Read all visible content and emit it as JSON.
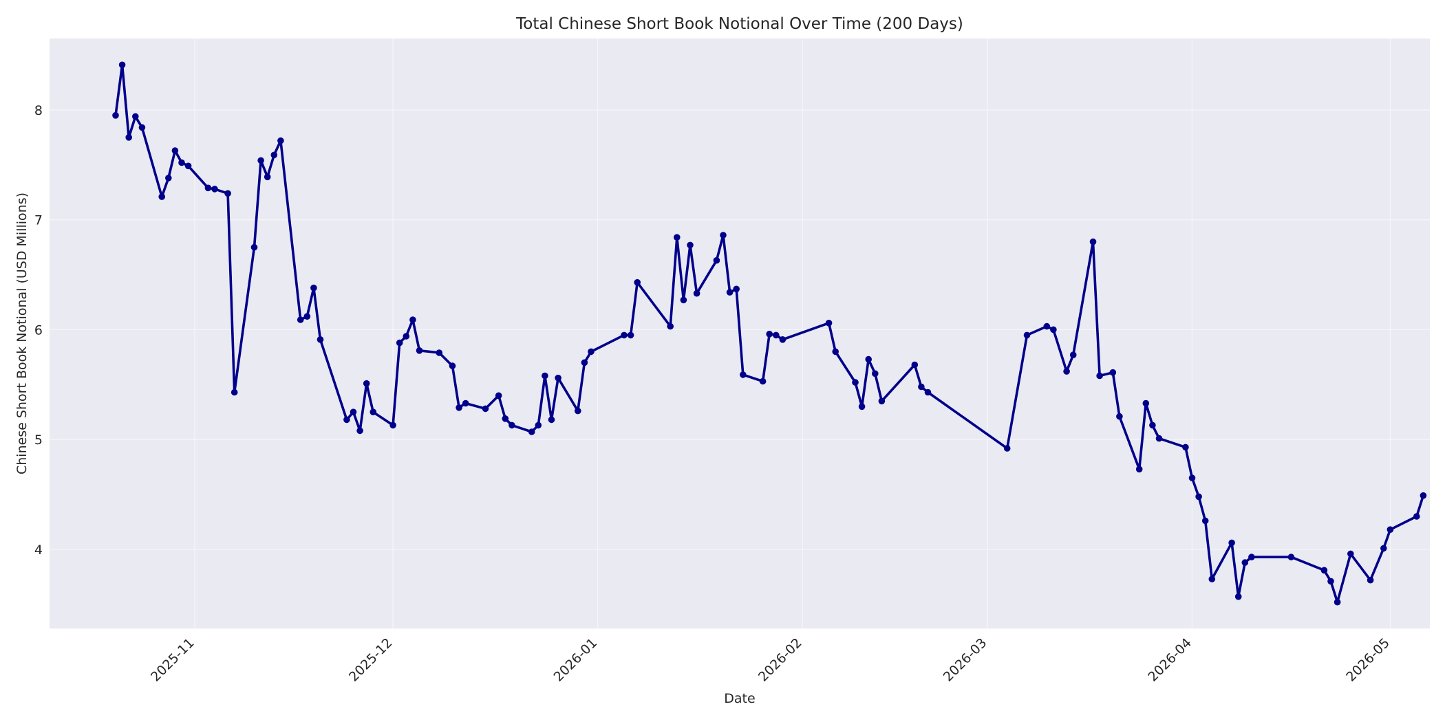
{
  "chart_data": {
    "type": "line",
    "title": "Total Chinese Short Book Notional Over Time (200 Days)",
    "xlabel": "Date",
    "ylabel": "Chinese Short Book Notional (USD Millions)",
    "x_axis": "date",
    "xlim": [
      "2025-10-10",
      "2026-05-07"
    ],
    "ylim": [
      3.28,
      8.65
    ],
    "x_ticks": [
      "2025-11-01",
      "2025-12-01",
      "2026-01-01",
      "2026-02-01",
      "2026-03-01",
      "2026-04-01",
      "2026-05-01"
    ],
    "x_tick_labels": [
      "2025-11",
      "2025-12",
      "2026-01",
      "2026-02",
      "2026-03",
      "2026-04",
      "2026-05"
    ],
    "y_ticks": [
      4,
      5,
      6,
      7,
      8
    ],
    "y_tick_labels": [
      "4",
      "5",
      "6",
      "7",
      "8"
    ],
    "grid": true,
    "colors": {
      "line": "#00008b",
      "plot_background": "#eaeaf2",
      "grid": "#ffffff"
    },
    "series": [
      {
        "marker": "circle",
        "points": [
          [
            "2025-10-20",
            7.95
          ],
          [
            "2025-10-21",
            8.41
          ],
          [
            "2025-10-22",
            7.75
          ],
          [
            "2025-10-23",
            7.94
          ],
          [
            "2025-10-24",
            7.84
          ],
          [
            "2025-10-27",
            7.21
          ],
          [
            "2025-10-28",
            7.38
          ],
          [
            "2025-10-29",
            7.63
          ],
          [
            "2025-10-30",
            7.52
          ],
          [
            "2025-10-31",
            7.49
          ],
          [
            "2025-11-03",
            7.29
          ],
          [
            "2025-11-04",
            7.28
          ],
          [
            "2025-11-06",
            7.24
          ],
          [
            "2025-11-07",
            5.43
          ],
          [
            "2025-11-10",
            6.75
          ],
          [
            "2025-11-11",
            7.54
          ],
          [
            "2025-11-12",
            7.39
          ],
          [
            "2025-11-13",
            7.59
          ],
          [
            "2025-11-14",
            7.72
          ],
          [
            "2025-11-17",
            6.09
          ],
          [
            "2025-11-18",
            6.12
          ],
          [
            "2025-11-19",
            6.38
          ],
          [
            "2025-11-20",
            5.91
          ],
          [
            "2025-11-24",
            5.18
          ],
          [
            "2025-11-25",
            5.25
          ],
          [
            "2025-11-26",
            5.08
          ],
          [
            "2025-11-27",
            5.51
          ],
          [
            "2025-11-28",
            5.25
          ],
          [
            "2025-12-01",
            5.13
          ],
          [
            "2025-12-02",
            5.88
          ],
          [
            "2025-12-03",
            5.94
          ],
          [
            "2025-12-04",
            6.09
          ],
          [
            "2025-12-05",
            5.81
          ],
          [
            "2025-12-08",
            5.79
          ],
          [
            "2025-12-10",
            5.67
          ],
          [
            "2025-12-11",
            5.29
          ],
          [
            "2025-12-12",
            5.33
          ],
          [
            "2025-12-15",
            5.28
          ],
          [
            "2025-12-17",
            5.4
          ],
          [
            "2025-12-18",
            5.19
          ],
          [
            "2025-12-19",
            5.13
          ],
          [
            "2025-12-22",
            5.07
          ],
          [
            "2025-12-23",
            5.13
          ],
          [
            "2025-12-24",
            5.58
          ],
          [
            "2025-12-25",
            5.18
          ],
          [
            "2025-12-26",
            5.56
          ],
          [
            "2025-12-29",
            5.26
          ],
          [
            "2025-12-30",
            5.7
          ],
          [
            "2025-12-31",
            5.8
          ],
          [
            "2026-01-05",
            5.95
          ],
          [
            "2026-01-06",
            5.95
          ],
          [
            "2026-01-07",
            6.43
          ],
          [
            "2026-01-12",
            6.03
          ],
          [
            "2026-01-13",
            6.84
          ],
          [
            "2026-01-14",
            6.27
          ],
          [
            "2026-01-15",
            6.77
          ],
          [
            "2026-01-16",
            6.33
          ],
          [
            "2026-01-19",
            6.63
          ],
          [
            "2026-01-20",
            6.86
          ],
          [
            "2026-01-21",
            6.34
          ],
          [
            "2026-01-22",
            6.37
          ],
          [
            "2026-01-23",
            5.59
          ],
          [
            "2026-01-26",
            5.53
          ],
          [
            "2026-01-27",
            5.96
          ],
          [
            "2026-01-28",
            5.95
          ],
          [
            "2026-01-29",
            5.91
          ],
          [
            "2026-02-05",
            6.06
          ],
          [
            "2026-02-06",
            5.8
          ],
          [
            "2026-02-09",
            5.52
          ],
          [
            "2026-02-10",
            5.3
          ],
          [
            "2026-02-11",
            5.73
          ],
          [
            "2026-02-12",
            5.6
          ],
          [
            "2026-02-13",
            5.35
          ],
          [
            "2026-02-18",
            5.68
          ],
          [
            "2026-02-19",
            5.48
          ],
          [
            "2026-02-20",
            5.43
          ],
          [
            "2026-03-04",
            4.92
          ],
          [
            "2026-03-07",
            5.95
          ],
          [
            "2026-03-10",
            6.03
          ],
          [
            "2026-03-11",
            6.0
          ],
          [
            "2026-03-13",
            5.62
          ],
          [
            "2026-03-14",
            5.77
          ],
          [
            "2026-03-17",
            6.8
          ],
          [
            "2026-03-18",
            5.58
          ],
          [
            "2026-03-20",
            5.61
          ],
          [
            "2026-03-21",
            5.21
          ],
          [
            "2026-03-24",
            4.73
          ],
          [
            "2026-03-25",
            5.33
          ],
          [
            "2026-03-26",
            5.13
          ],
          [
            "2026-03-27",
            5.01
          ],
          [
            "2026-03-31",
            4.93
          ],
          [
            "2026-04-01",
            4.65
          ],
          [
            "2026-04-02",
            4.48
          ],
          [
            "2026-04-03",
            4.26
          ],
          [
            "2026-04-04",
            3.73
          ],
          [
            "2026-04-07",
            4.06
          ],
          [
            "2026-04-08",
            3.57
          ],
          [
            "2026-04-09",
            3.88
          ],
          [
            "2026-04-10",
            3.93
          ],
          [
            "2026-04-16",
            3.93
          ],
          [
            "2026-04-21",
            3.81
          ],
          [
            "2026-04-22",
            3.71
          ],
          [
            "2026-04-23",
            3.52
          ],
          [
            "2026-04-25",
            3.96
          ],
          [
            "2026-04-28",
            3.72
          ],
          [
            "2026-04-30",
            4.01
          ],
          [
            "2026-05-01",
            4.18
          ],
          [
            "2026-05-05",
            4.3
          ],
          [
            "2026-05-06",
            4.49
          ]
        ]
      }
    ]
  }
}
